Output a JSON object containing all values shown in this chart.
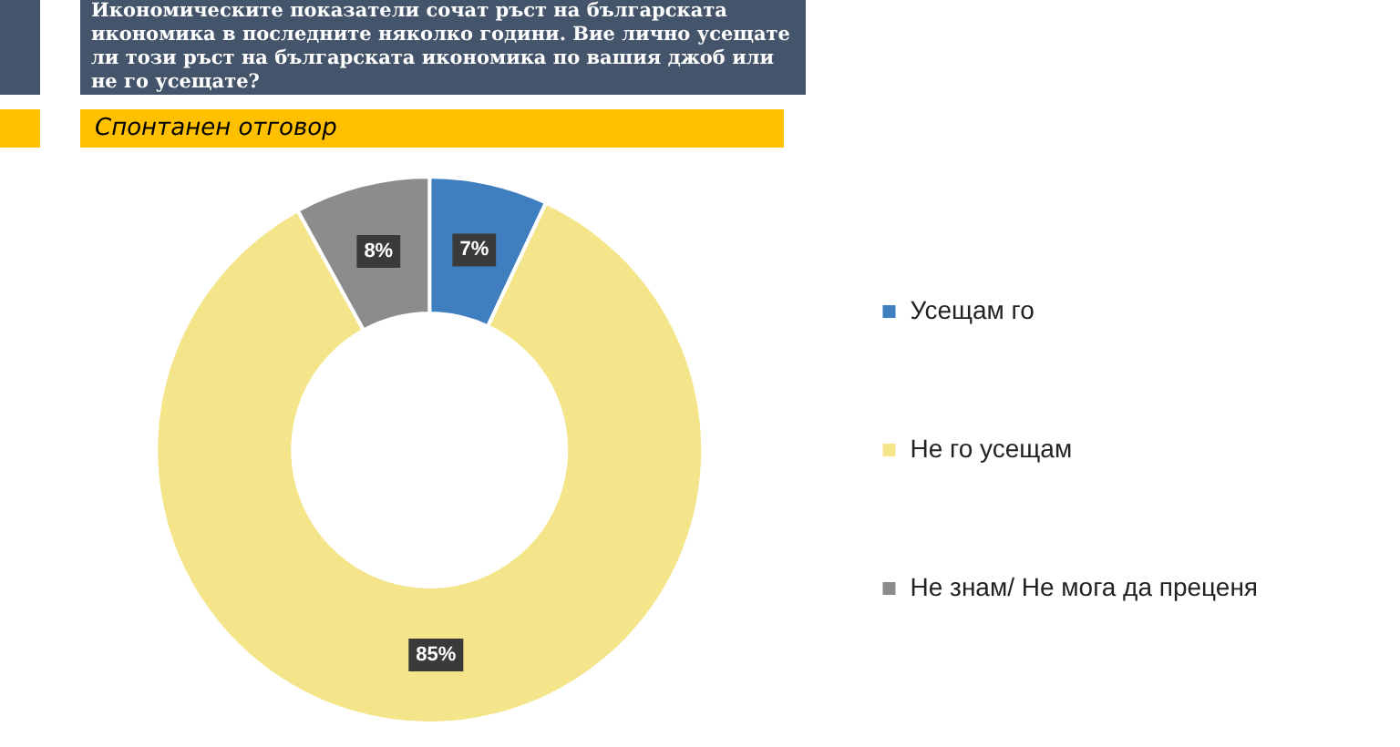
{
  "chart_data": {
    "type": "donut",
    "title": "Икономическите показатели сочат ръст на българската икономика в последните няколко години. Вие лично усещате ли този ръст на българската икономика по вашия джоб или не го усещате?",
    "subtitle": "Спонтанен отговор",
    "categories": [
      "Усещам го",
      "Не го усещам",
      "Не знам/ Не мога да преценя"
    ],
    "values": [
      7,
      85,
      8
    ],
    "colors": [
      "#3f7fc0",
      "#f4e48a",
      "#8c8c8c"
    ],
    "value_labels": [
      "7%",
      "85%",
      "8%"
    ],
    "legend": "right"
  }
}
